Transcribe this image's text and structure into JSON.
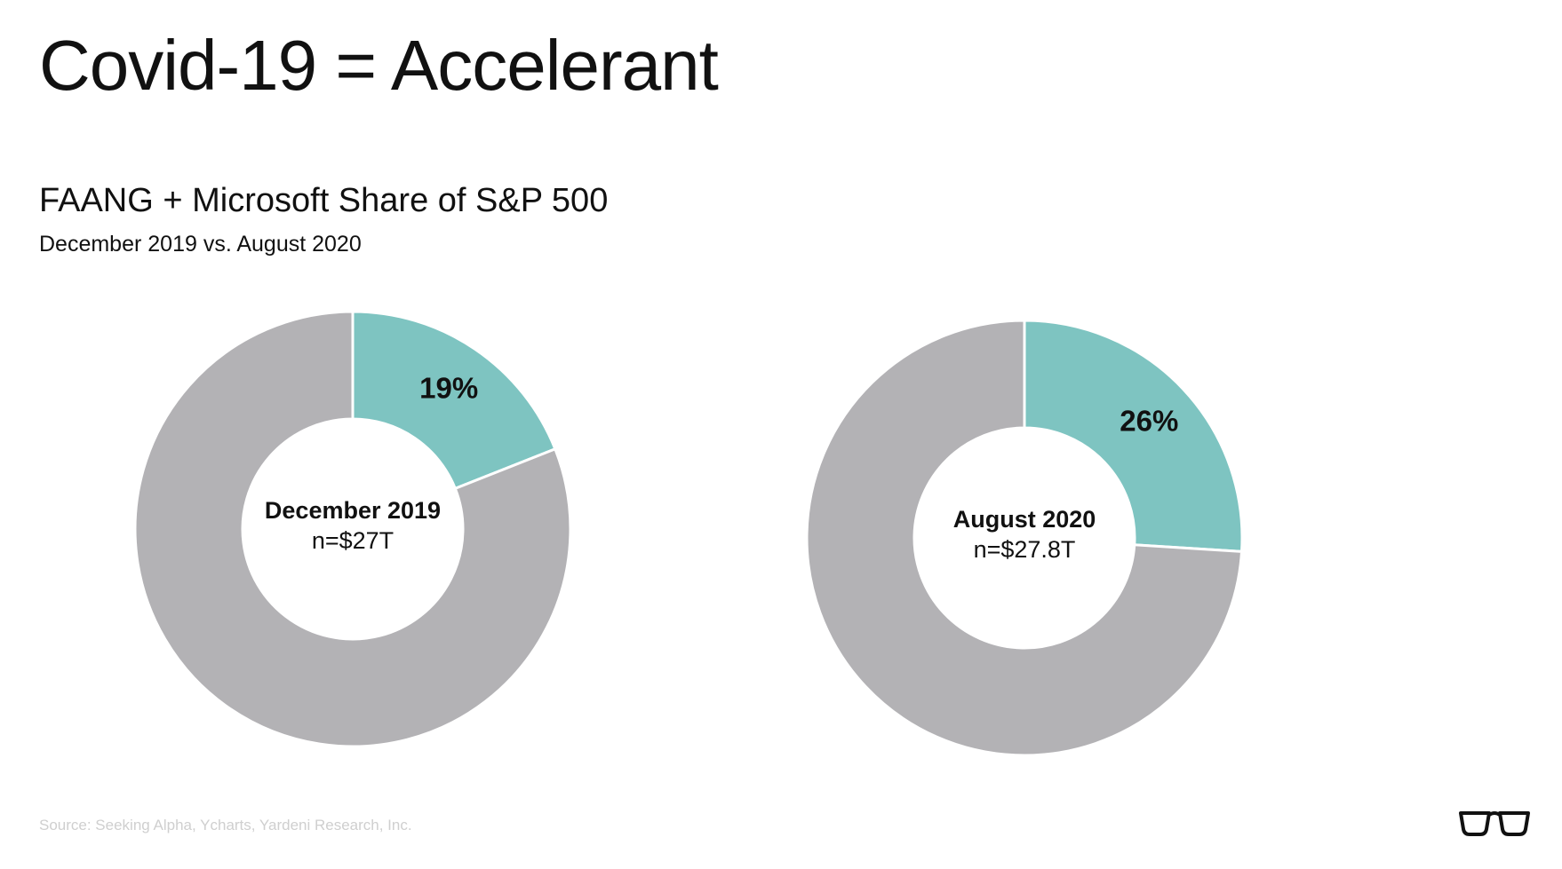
{
  "slide": {
    "title": "Covid-19 = Accelerant",
    "source": "Source: Seeking Alpha, Ycharts, Yardeni Research, Inc."
  },
  "logo": {
    "icon": "glasses-icon"
  },
  "colors": {
    "highlight": "#7ec4c1",
    "remainder": "#b3b2b5",
    "separator": "#ffffff",
    "text": "#111111"
  },
  "chart_data": [
    {
      "type": "pie",
      "title": "FAANG + Microsoft Share of S&P 500",
      "subtitle": "December 2019 vs. August 2020",
      "center_label": "December 2019",
      "center_sublabel": "n=$27T",
      "slices": [
        {
          "value": 19,
          "label": "19%",
          "highlighted": true
        },
        {
          "value": 81,
          "label": "",
          "highlighted": false
        }
      ]
    },
    {
      "type": "pie",
      "center_label": "August 2020",
      "center_sublabel": "n=$27.8T",
      "slices": [
        {
          "value": 26,
          "label": "26%",
          "highlighted": true
        },
        {
          "value": 74,
          "label": "",
          "highlighted": false
        }
      ]
    }
  ]
}
